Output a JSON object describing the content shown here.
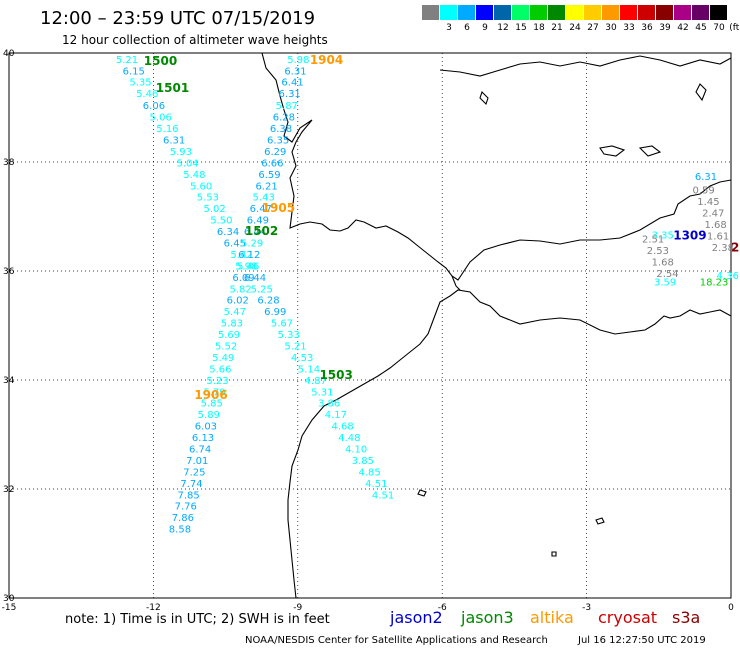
{
  "header": {
    "title": "12:00 – 23:59 UTC 07/15/2019",
    "subtitle": "12 hour collection of altimeter wave heights"
  },
  "scale": {
    "unit": "(ft)",
    "bins": [
      {
        "label": "",
        "color": "#808080"
      },
      {
        "label": "3",
        "color": "#00ffff"
      },
      {
        "label": "6",
        "color": "#00aaff"
      },
      {
        "label": "9",
        "color": "#0000ff"
      },
      {
        "label": "12",
        "color": "#0066aa"
      },
      {
        "label": "15",
        "color": "#00ff66"
      },
      {
        "label": "18",
        "color": "#00cc00"
      },
      {
        "label": "21",
        "color": "#008800"
      },
      {
        "label": "24",
        "color": "#ffff00"
      },
      {
        "label": "27",
        "color": "#ffcc00"
      },
      {
        "label": "30",
        "color": "#ff9900"
      },
      {
        "label": "33",
        "color": "#ff0000"
      },
      {
        "label": "36",
        "color": "#cc0000"
      },
      {
        "label": "39",
        "color": "#880000"
      },
      {
        "label": "42",
        "color": "#aa0088"
      },
      {
        "label": "45",
        "color": "#660066"
      },
      {
        "label": "70",
        "color": "#000000"
      }
    ]
  },
  "map": {
    "lon_ticks": [
      "-15",
      "-12",
      "-9",
      "-6",
      "-3",
      "0"
    ],
    "lat_ticks": [
      "40",
      "38",
      "36",
      "34",
      "32",
      "30"
    ],
    "lon_range": [
      -15,
      0
    ],
    "lat_range": [
      30,
      40
    ]
  },
  "track_labels": [
    {
      "text": "1500",
      "lon": -12.2,
      "lat": 39.78,
      "color": "#008800"
    },
    {
      "text": "1501",
      "lon": -11.95,
      "lat": 39.28,
      "color": "#008800"
    },
    {
      "text": "1502",
      "lon": -10.1,
      "lat": 36.66,
      "color": "#008800"
    },
    {
      "text": "1503",
      "lon": -8.55,
      "lat": 34.02,
      "color": "#008800"
    },
    {
      "text": "1904",
      "lon": -8.75,
      "lat": 39.8,
      "color": "#ff9900"
    },
    {
      "text": "1905",
      "lon": -9.75,
      "lat": 37.08,
      "color": "#ff9900"
    },
    {
      "text": "1906",
      "lon": -11.15,
      "lat": 33.65,
      "color": "#ff9900"
    },
    {
      "text": "1309",
      "lon": -1.2,
      "lat": 36.58,
      "color": "#0000cc"
    },
    {
      "text": "2",
      "lon": 0.0,
      "lat": 36.36,
      "color": "#8b0000"
    }
  ],
  "tracks": [
    {
      "name": "track-1500-1503",
      "points": [
        [
          "5.21",
          -12.78,
          39.82
        ],
        [
          "6.15",
          -12.64,
          39.61
        ],
        [
          "5.35",
          -12.5,
          39.4
        ],
        [
          "5.46",
          -12.36,
          39.19
        ],
        [
          "6.06",
          -12.22,
          38.97
        ],
        [
          "5.06",
          -12.08,
          38.76
        ],
        [
          "5.16",
          -11.94,
          38.55
        ],
        [
          "6.31",
          -11.8,
          38.34
        ],
        [
          "5.93",
          -11.66,
          38.13
        ],
        [
          "5.04",
          -11.52,
          37.92
        ],
        [
          "5.48",
          -11.38,
          37.71
        ],
        [
          "5.60",
          -11.24,
          37.5
        ],
        [
          "5.53",
          -11.1,
          37.29
        ],
        [
          "5.02",
          -10.96,
          37.08
        ],
        [
          "5.50",
          -10.82,
          36.87
        ],
        [
          "6.34",
          -10.68,
          36.66
        ],
        [
          "6.45",
          -10.54,
          36.45
        ],
        [
          "5.42",
          -10.4,
          36.24
        ],
        [
          "5.46",
          -10.26,
          36.03
        ],
        [
          "6.44",
          -10.12,
          35.82
        ],
        [
          "5.25",
          -9.98,
          35.61
        ],
        [
          "6.28",
          -9.84,
          35.4
        ],
        [
          "6.99",
          -9.7,
          35.19
        ],
        [
          "5.67",
          -9.56,
          34.98
        ],
        [
          "5.33",
          -9.42,
          34.77
        ],
        [
          "5.21",
          -9.28,
          34.56
        ],
        [
          "4.53",
          -9.14,
          34.35
        ],
        [
          "5.14",
          -9.0,
          34.14
        ],
        [
          "4.87",
          -8.86,
          33.93
        ],
        [
          "5.31",
          -8.72,
          33.72
        ],
        [
          "3.86",
          -8.58,
          33.51
        ],
        [
          "4.17",
          -8.44,
          33.3
        ],
        [
          "4.68",
          -8.3,
          33.09
        ],
        [
          "4.48",
          -8.16,
          32.88
        ],
        [
          "4.10",
          -8.02,
          32.67
        ],
        [
          "3.85",
          -7.88,
          32.46
        ],
        [
          "4.85",
          -7.74,
          32.25
        ],
        [
          "4.51",
          -7.6,
          32.04
        ],
        [
          "4.51",
          -7.46,
          31.83
        ]
      ]
    },
    {
      "name": "track-1904-1906",
      "points": [
        [
          "5.98",
          -9.22,
          39.82
        ],
        [
          "6.31",
          -9.28,
          39.61
        ],
        [
          "6.41",
          -9.34,
          39.4
        ],
        [
          "6.31",
          -9.4,
          39.19
        ],
        [
          "5.87",
          -9.46,
          38.97
        ],
        [
          "6.28",
          -9.52,
          38.76
        ],
        [
          "6.38",
          -9.58,
          38.55
        ],
        [
          "6.35",
          -9.64,
          38.34
        ],
        [
          "6.29",
          -9.7,
          38.13
        ],
        [
          "6.66",
          -9.76,
          37.92
        ],
        [
          "6.59",
          -9.82,
          37.71
        ],
        [
          "6.21",
          -9.88,
          37.5
        ],
        [
          "5.43",
          -9.94,
          37.29
        ],
        [
          "6.47",
          -10.0,
          37.08
        ],
        [
          "6.49",
          -10.06,
          36.87
        ],
        [
          "6.44",
          -10.12,
          36.66
        ],
        [
          "5.29",
          -10.18,
          36.45
        ],
        [
          "6.12",
          -10.24,
          36.24
        ],
        [
          "5.98",
          -10.3,
          36.03
        ],
        [
          "6.09",
          -10.36,
          35.82
        ],
        [
          "5.82",
          -10.42,
          35.61
        ],
        [
          "6.02",
          -10.48,
          35.4
        ],
        [
          "5.47",
          -10.54,
          35.19
        ],
        [
          "5.83",
          -10.6,
          34.98
        ],
        [
          "5.69",
          -10.66,
          34.77
        ],
        [
          "5.52",
          -10.72,
          34.56
        ],
        [
          "5.49",
          -10.78,
          34.35
        ],
        [
          "5.66",
          -10.84,
          34.14
        ],
        [
          "5.23",
          -10.9,
          33.93
        ],
        [
          "5.79",
          -10.96,
          33.72
        ],
        [
          "5.85",
          -11.02,
          33.51
        ],
        [
          "5.89",
          -11.08,
          33.3
        ],
        [
          "6.03",
          -11.14,
          33.09
        ],
        [
          "6.13",
          -11.2,
          32.88
        ],
        [
          "6.74",
          -11.26,
          32.67
        ],
        [
          "7.01",
          -11.32,
          32.46
        ],
        [
          "7.25",
          -11.38,
          32.25
        ],
        [
          "7.74",
          -11.44,
          32.04
        ],
        [
          "7.85",
          -11.5,
          31.83
        ],
        [
          "7.76",
          -11.56,
          31.62
        ],
        [
          "7.86",
          -11.62,
          31.41
        ],
        [
          "8.58",
          -11.68,
          31.2
        ]
      ]
    },
    {
      "name": "track-1309",
      "points": [
        [
          "6.31",
          -0.75,
          37.67
        ],
        [
          "3.35",
          -1.65,
          36.6
        ],
        [
          "3.59",
          -1.6,
          35.73
        ],
        [
          "4.36",
          -0.3,
          35.85
        ],
        [
          "18.23",
          -0.65,
          35.73
        ]
      ]
    },
    {
      "name": "track-grey",
      "points": [
        [
          "0.59",
          -0.8,
          37.42
        ],
        [
          "1.45",
          -0.7,
          37.21
        ],
        [
          "2.47",
          -0.6,
          37.0
        ],
        [
          "1.68",
          -0.55,
          36.79
        ],
        [
          "1.61",
          -0.5,
          36.58
        ],
        [
          "2.38",
          -0.4,
          36.37
        ],
        [
          "2.51",
          -1.85,
          36.52
        ],
        [
          "2.53",
          -1.75,
          36.31
        ],
        [
          "1.68",
          -1.65,
          36.1
        ],
        [
          "2.54",
          -1.55,
          35.89
        ]
      ]
    }
  ],
  "note": "note:  1) Time is in UTC;  2) SWH is in feet",
  "legend": [
    {
      "label": "jason2",
      "color": "#0000cc"
    },
    {
      "label": "jason3",
      "color": "#008800"
    },
    {
      "label": "altika",
      "color": "#ff9900"
    },
    {
      "label": "cryosat",
      "color": "#cc0000"
    },
    {
      "label": "s3a",
      "color": "#8b0000"
    }
  ],
  "footer": "NOAA/NESDIS Center for Satellite Applications and Research",
  "footer_date": "Jul 16 12:27:50 UTC 2019"
}
